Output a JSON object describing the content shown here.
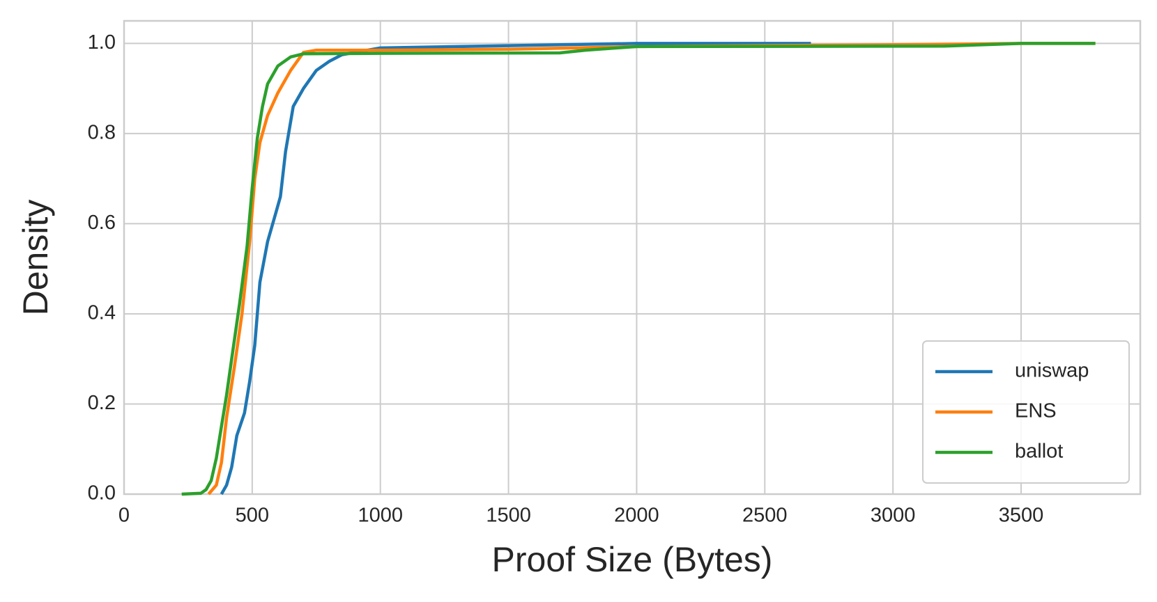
{
  "chart_data": {
    "type": "line",
    "xlabel": "Proof Size (Bytes)",
    "ylabel": "Density",
    "xlim": [
      0,
      3965
    ],
    "ylim": [
      0,
      1.05
    ],
    "xticks": [
      0,
      500,
      1000,
      1500,
      2000,
      2500,
      3000,
      3500
    ],
    "yticks": [
      {
        "value": 0,
        "label": "0.0"
      },
      0.2,
      0.4,
      0.6,
      0.8,
      {
        "value": 1,
        "label": "1.0"
      }
    ],
    "grid": true,
    "legend": "lower right",
    "series": [
      {
        "name": "uniswap",
        "color": "#1f77b4",
        "x": [
          380,
          400,
          420,
          440,
          470,
          490,
          510,
          530,
          560,
          590,
          610,
          630,
          660,
          700,
          750,
          800,
          850,
          900,
          1000,
          1500,
          2000,
          2680
        ],
        "values": [
          0,
          0.02,
          0.06,
          0.13,
          0.18,
          0.25,
          0.33,
          0.47,
          0.56,
          0.62,
          0.66,
          0.76,
          0.86,
          0.9,
          0.94,
          0.96,
          0.975,
          0.98,
          0.99,
          0.995,
          1,
          1
        ]
      },
      {
        "name": "ENS",
        "color": "#ff7f0e",
        "x": [
          330,
          360,
          380,
          400,
          430,
          460,
          490,
          510,
          530,
          560,
          600,
          650,
          700,
          750,
          1000,
          1500,
          1750,
          2000,
          3000,
          3500,
          3790
        ],
        "values": [
          0,
          0.02,
          0.07,
          0.17,
          0.28,
          0.4,
          0.56,
          0.7,
          0.78,
          0.84,
          0.89,
          0.94,
          0.98,
          0.985,
          0.985,
          0.987,
          0.99,
          0.993,
          0.997,
          1,
          1
        ]
      },
      {
        "name": "ballot",
        "color": "#2ca02c",
        "x": [
          225,
          300,
          320,
          340,
          360,
          380,
          400,
          420,
          450,
          480,
          500,
          520,
          540,
          560,
          600,
          650,
          700,
          1000,
          1700,
          1800,
          2000,
          3200,
          3500,
          3790
        ],
        "values": [
          0,
          0.002,
          0.01,
          0.03,
          0.08,
          0.15,
          0.22,
          0.3,
          0.42,
          0.55,
          0.68,
          0.79,
          0.86,
          0.91,
          0.95,
          0.97,
          0.977,
          0.978,
          0.979,
          0.985,
          0.993,
          0.994,
          1,
          1
        ]
      }
    ]
  }
}
